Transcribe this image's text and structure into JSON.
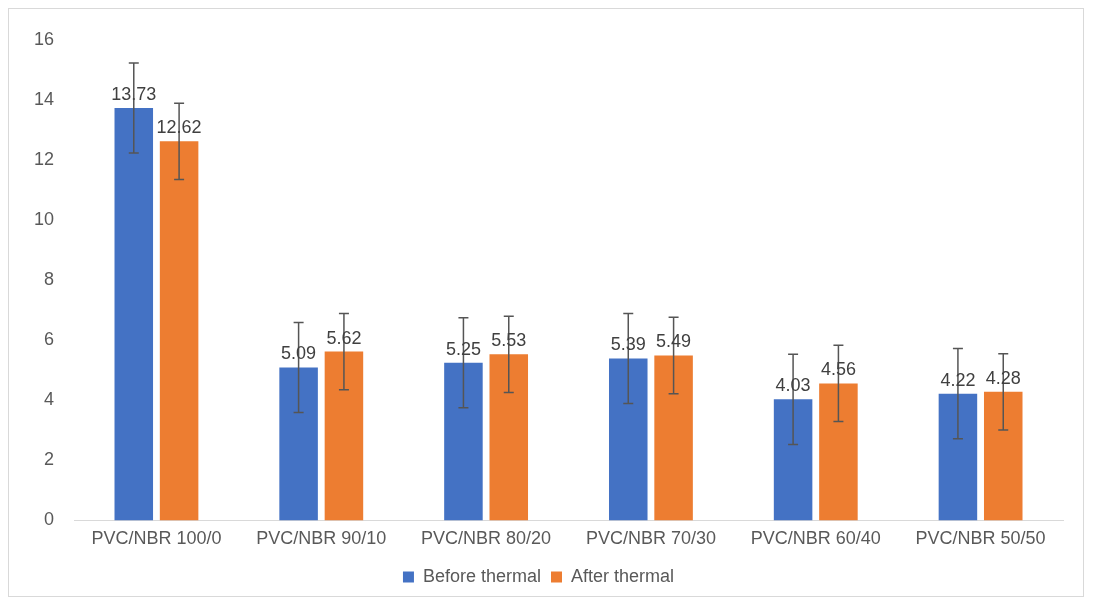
{
  "chart_data": {
    "type": "bar",
    "categories": [
      "PVC/NBR 100/0",
      "PVC/NBR 90/10",
      "PVC/NBR 80/20",
      "PVC/NBR 70/30",
      "PVC/NBR 60/40",
      "PVC/NBR 50/50"
    ],
    "series": [
      {
        "name": "Before thermal",
        "color": "#4472c4",
        "values": [
          13.73,
          5.09,
          5.25,
          5.39,
          4.03,
          4.22
        ],
        "errors": [
          1.5,
          1.5,
          1.5,
          1.5,
          1.5,
          1.5
        ]
      },
      {
        "name": "After thermal",
        "color": "#ed7d31",
        "values": [
          12.62,
          5.62,
          5.53,
          5.49,
          4.56,
          4.28
        ],
        "errors": [
          1.27,
          1.27,
          1.27,
          1.27,
          1.27,
          1.27
        ]
      }
    ],
    "ylim": [
      0,
      16
    ],
    "yticks": [
      0,
      2,
      4,
      6,
      8,
      10,
      12,
      14,
      16
    ],
    "grid": false,
    "legend": "bottom",
    "data_labels": true
  }
}
